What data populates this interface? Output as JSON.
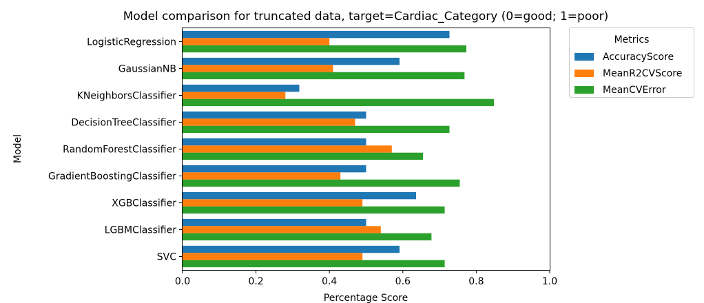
{
  "chart_data": {
    "type": "bar",
    "orientation": "horizontal",
    "title": "Model comparison for truncated data, target=Cardiac_Category (0=good; 1=poor)",
    "xlabel": "Percentage Score",
    "ylabel": "Model",
    "xlim": [
      0.0,
      1.0
    ],
    "xticks": [
      "0.0",
      "0.2",
      "0.4",
      "0.6",
      "0.8",
      "1.0"
    ],
    "grid": false,
    "legend": {
      "title": "Metrics",
      "placement": "outside-right-top"
    },
    "categories": [
      "LogisticRegression",
      "GaussianNB",
      "KNeighborsClassifier",
      "DecisionTreeClassifier",
      "RandomForestClassifier",
      "GradientBoostingClassifier",
      "XGBClassifier",
      "LGBMClassifier",
      "SVC"
    ],
    "series": [
      {
        "name": "AccuracyScore",
        "color": "#1f77b4",
        "values": [
          0.727,
          0.591,
          0.318,
          0.5,
          0.5,
          0.5,
          0.636,
          0.5,
          0.591
        ]
      },
      {
        "name": "MeanR2CVScore",
        "color": "#ff7f0e",
        "values": [
          0.4,
          0.41,
          0.28,
          0.47,
          0.57,
          0.43,
          0.49,
          0.54,
          0.49
        ]
      },
      {
        "name": "MeanCVError",
        "color": "#2ca02c",
        "values": [
          0.773,
          0.768,
          0.848,
          0.727,
          0.655,
          0.755,
          0.714,
          0.678,
          0.714
        ]
      }
    ]
  }
}
